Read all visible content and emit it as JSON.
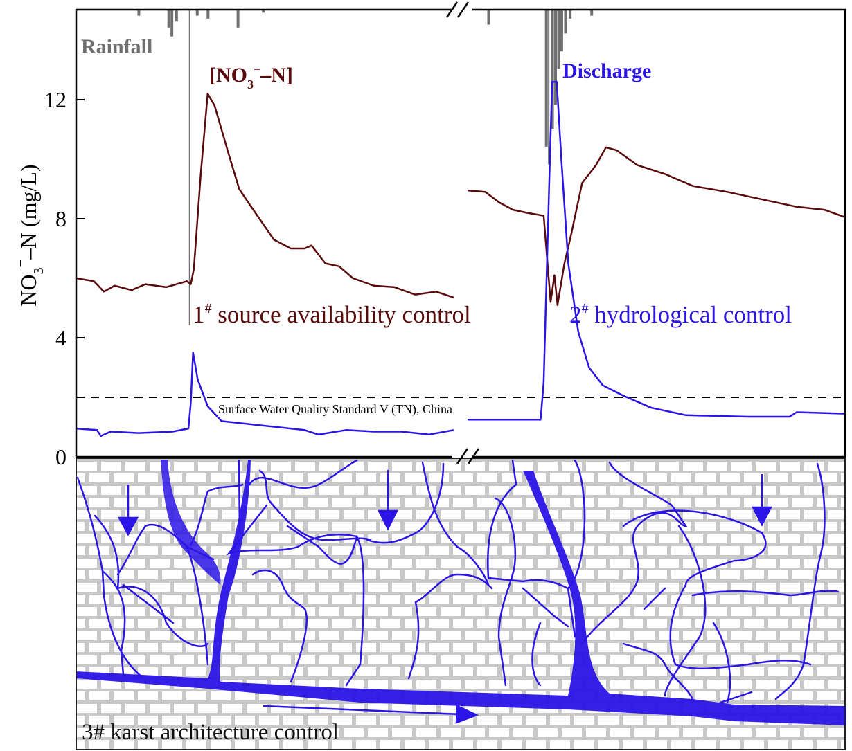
{
  "colors": {
    "nitrate": "#5a0a0a",
    "discharge": "#2a14e6",
    "rainfall": "#707070",
    "karst": "#2a14e6",
    "brick_mortar": "#c8c8c8",
    "standard_line": "#000000"
  },
  "chart_data": {
    "type": "line",
    "ylabel_main": "NO",
    "ylabel_sub": "3",
    "ylabel_sup": "−",
    "ylabel_rest": "–N (mg/L)",
    "ylim": [
      0,
      15
    ],
    "yticks": [
      "0",
      "4",
      "8",
      "12"
    ],
    "ytick_values": [
      0,
      4,
      8,
      12
    ],
    "x_axis_break": true,
    "grid": false,
    "labels": {
      "rainfall": "Rainfall",
      "nitrate_open": "[NO",
      "nitrate_sub": "3",
      "nitrate_sup": "−",
      "nitrate_close": "–N]",
      "discharge": "Discharge",
      "control1_num": "1",
      "control1_sup": "#",
      "control1_text": " source availability control",
      "control2_num": "2",
      "control2_sup": "#",
      "control2_text": " hydrological control",
      "standard": "Surface Water Quality Standard V (TN), China"
    },
    "standard_value": 2,
    "series": [
      {
        "name": "[NO3−–N]",
        "segment": 1,
        "points": [
          [
            0,
            6.0
          ],
          [
            2.3,
            5.9
          ],
          [
            3.6,
            5.55
          ],
          [
            5,
            5.75
          ],
          [
            7.2,
            5.6
          ],
          [
            9,
            5.8
          ],
          [
            11.7,
            5.7
          ],
          [
            14.4,
            5.9
          ],
          [
            14.9,
            5.8
          ],
          [
            15.3,
            6.3
          ],
          [
            16.2,
            9.5
          ],
          [
            17.1,
            12.2
          ],
          [
            18,
            11.8
          ],
          [
            19.8,
            10.2
          ],
          [
            21.2,
            9.0
          ],
          [
            22.5,
            8.5
          ],
          [
            25.7,
            7.3
          ],
          [
            27.9,
            7.0
          ],
          [
            29.7,
            7.0
          ],
          [
            30.6,
            7.1
          ],
          [
            32.4,
            6.5
          ],
          [
            34.2,
            6.4
          ],
          [
            36,
            6.0
          ],
          [
            38.7,
            5.75
          ],
          [
            41.4,
            5.7
          ],
          [
            44.1,
            5.45
          ],
          [
            46.8,
            5.55
          ],
          [
            49.1,
            5.35
          ]
        ]
      },
      {
        "name": "[NO3−–N]",
        "segment": 2,
        "points": [
          [
            50.9,
            8.95
          ],
          [
            53.2,
            8.9
          ],
          [
            55,
            8.55
          ],
          [
            56.8,
            8.3
          ],
          [
            58.6,
            8.2
          ],
          [
            60.8,
            8.1
          ],
          [
            61.3,
            6.5
          ],
          [
            61.7,
            5.2
          ],
          [
            62.2,
            6.1
          ],
          [
            62.6,
            5.1
          ],
          [
            63.5,
            6.5
          ],
          [
            64.4,
            7.5
          ],
          [
            65.8,
            9.2
          ],
          [
            67.6,
            9.8
          ],
          [
            68.9,
            10.4
          ],
          [
            70.3,
            10.3
          ],
          [
            73,
            9.8
          ],
          [
            76.6,
            9.5
          ],
          [
            80.2,
            9.1
          ],
          [
            84.7,
            8.9
          ],
          [
            89.2,
            8.65
          ],
          [
            93.7,
            8.4
          ],
          [
            97.3,
            8.3
          ],
          [
            100,
            8.05
          ]
        ]
      },
      {
        "name": "Discharge",
        "segment": 1,
        "points": [
          [
            0,
            0.95
          ],
          [
            2.7,
            0.9
          ],
          [
            3.2,
            0.7
          ],
          [
            4.5,
            0.85
          ],
          [
            8.1,
            0.8
          ],
          [
            12.6,
            0.85
          ],
          [
            14.6,
            0.95
          ],
          [
            14.9,
            1.8
          ],
          [
            15.2,
            3.5
          ],
          [
            15.8,
            2.6
          ],
          [
            17.1,
            1.7
          ],
          [
            18.9,
            1.2
          ],
          [
            24.3,
            1.05
          ],
          [
            29.7,
            0.9
          ],
          [
            31.5,
            0.75
          ],
          [
            35.1,
            0.9
          ],
          [
            38.7,
            0.85
          ],
          [
            42.3,
            0.85
          ],
          [
            45.9,
            0.75
          ],
          [
            49.1,
            0.9
          ]
        ]
      },
      {
        "name": "Discharge",
        "segment": 2,
        "points": [
          [
            50.9,
            1.25
          ],
          [
            60.4,
            1.25
          ],
          [
            60.8,
            2.5
          ],
          [
            61.5,
            9
          ],
          [
            61.9,
            12.6
          ],
          [
            62.5,
            12.6
          ],
          [
            63.1,
            10
          ],
          [
            64,
            6.5
          ],
          [
            65.3,
            4.2
          ],
          [
            66.7,
            3.0
          ],
          [
            68.5,
            2.4
          ],
          [
            71.2,
            2.05
          ],
          [
            74.8,
            1.65
          ],
          [
            79.3,
            1.4
          ],
          [
            87.4,
            1.35
          ],
          [
            92.8,
            1.35
          ],
          [
            93.7,
            1.5
          ],
          [
            100,
            1.45
          ]
        ]
      },
      {
        "name": "Rainfall",
        "bars": [
          [
            8.1,
            0.2
          ],
          [
            12,
            0.6
          ],
          [
            12.4,
            0.9
          ],
          [
            13,
            0.4
          ],
          [
            14.8,
            10.6
          ],
          [
            15.7,
            0.2
          ],
          [
            17.1,
            0.3
          ],
          [
            21,
            0.6
          ],
          [
            24.3,
            0.1
          ],
          [
            53.6,
            0.5
          ],
          [
            61.1,
            4.6
          ],
          [
            61.5,
            5.2
          ],
          [
            61.9,
            4.0
          ],
          [
            62.3,
            3.2
          ],
          [
            62.7,
            2.0
          ],
          [
            63.1,
            1.4
          ],
          [
            63.6,
            0.8
          ],
          [
            64.2,
            0.3
          ],
          [
            67,
            0.2
          ]
        ]
      }
    ]
  },
  "diagram": {
    "label": "3# karst architecture control"
  }
}
